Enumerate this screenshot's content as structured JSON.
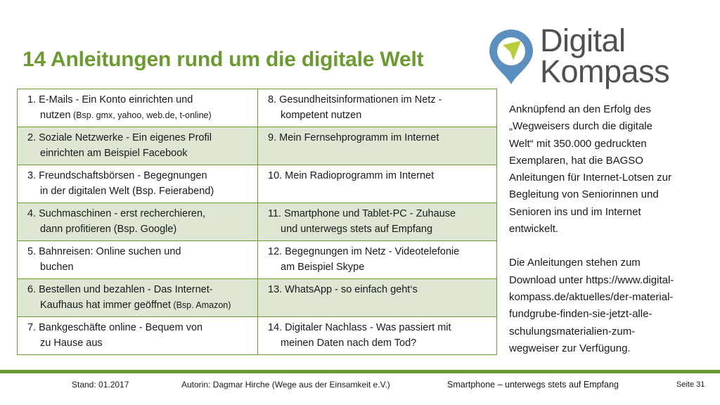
{
  "title": "14 Anleitungen rund um die digitale Welt",
  "logo": {
    "line1": "Digital",
    "line2": "Kompass"
  },
  "colors": {
    "accent": "#6b9a2e",
    "shade": "#dde5d3",
    "logo_text": "#505050",
    "logo_pin": "#5b8fc0",
    "logo_arrow": "#b9cc39"
  },
  "guides": [
    {
      "left": [
        "1. E-Mails - Ein Konto einrichten und",
        "nutzen"
      ],
      "left_small": " (Bsp. gmx, yahoo, web.de, t-online)",
      "right": [
        "8. Gesundheitsinformationen im Netz -",
        "kompetent nutzen"
      ]
    },
    {
      "left": [
        "2. Soziale Netzwerke - Ein eigenes Profil",
        "einrichten am Beispiel Facebook"
      ],
      "right": [
        "9. Mein Fernsehprogramm im Internet"
      ]
    },
    {
      "left": [
        "3. Freundschaftsbörsen - Begegnungen",
        "in der digitalen Welt (Bsp. Feierabend)"
      ],
      "right": [
        "10. Mein Radioprogramm im Internet"
      ]
    },
    {
      "left": [
        "4. Suchmaschinen - erst recherchieren,",
        "dann profitieren (Bsp. Google)"
      ],
      "right": [
        "11. Smartphone und Tablet-PC - Zuhause",
        "und unterwegs stets auf Empfang"
      ]
    },
    {
      "left": [
        "5. Bahnreisen: Online suchen und",
        "buchen"
      ],
      "right": [
        "12. Begegnungen im Netz - Videotelefonie",
        "am Beispiel Skype"
      ]
    },
    {
      "left": [
        "6. Bestellen und bezahlen - Das Internet-",
        "Kaufhaus hat immer geöffnet"
      ],
      "left_small": " (Bsp. Amazon)",
      "right": [
        "13. WhatsApp - so einfach geht‘s"
      ]
    },
    {
      "left": [
        "7. Bankgeschäfte online - Bequem von",
        "zu Hause aus"
      ],
      "right": [
        "14. Digitaler Nachlass - Was passiert mit",
        "meinen Daten nach dem Tod?"
      ]
    }
  ],
  "sidebar": {
    "paragraph1": [
      "Anknüpfend an den Erfolg des",
      "„Wegweisers durch die digitale",
      "Welt“ mit 350.000 gedruckten",
      "Exemplaren, hat die BAGSO",
      "Anleitungen für Internet-Lotsen zur",
      "Begleitung von Seniorinnen und",
      "Senioren ins und im Internet",
      "entwickelt."
    ],
    "paragraph2": [
      "Die Anleitungen stehen zum",
      "Download unter https://www.digital-",
      "kompass.de/aktuelles/der-material-",
      "fundgrube-finden-sie-jetzt-alle-",
      "schulungsmaterialien-zum-",
      "wegweiser zur Verfügung."
    ]
  },
  "footer": {
    "stand": "Stand: 01.2017",
    "author": "Autorin: Dagmar Hirche (Wege aus der Einsamkeit e.V.)",
    "topic": "Smartphone – unterwegs stets auf Empfang",
    "page": "Seite 31"
  }
}
